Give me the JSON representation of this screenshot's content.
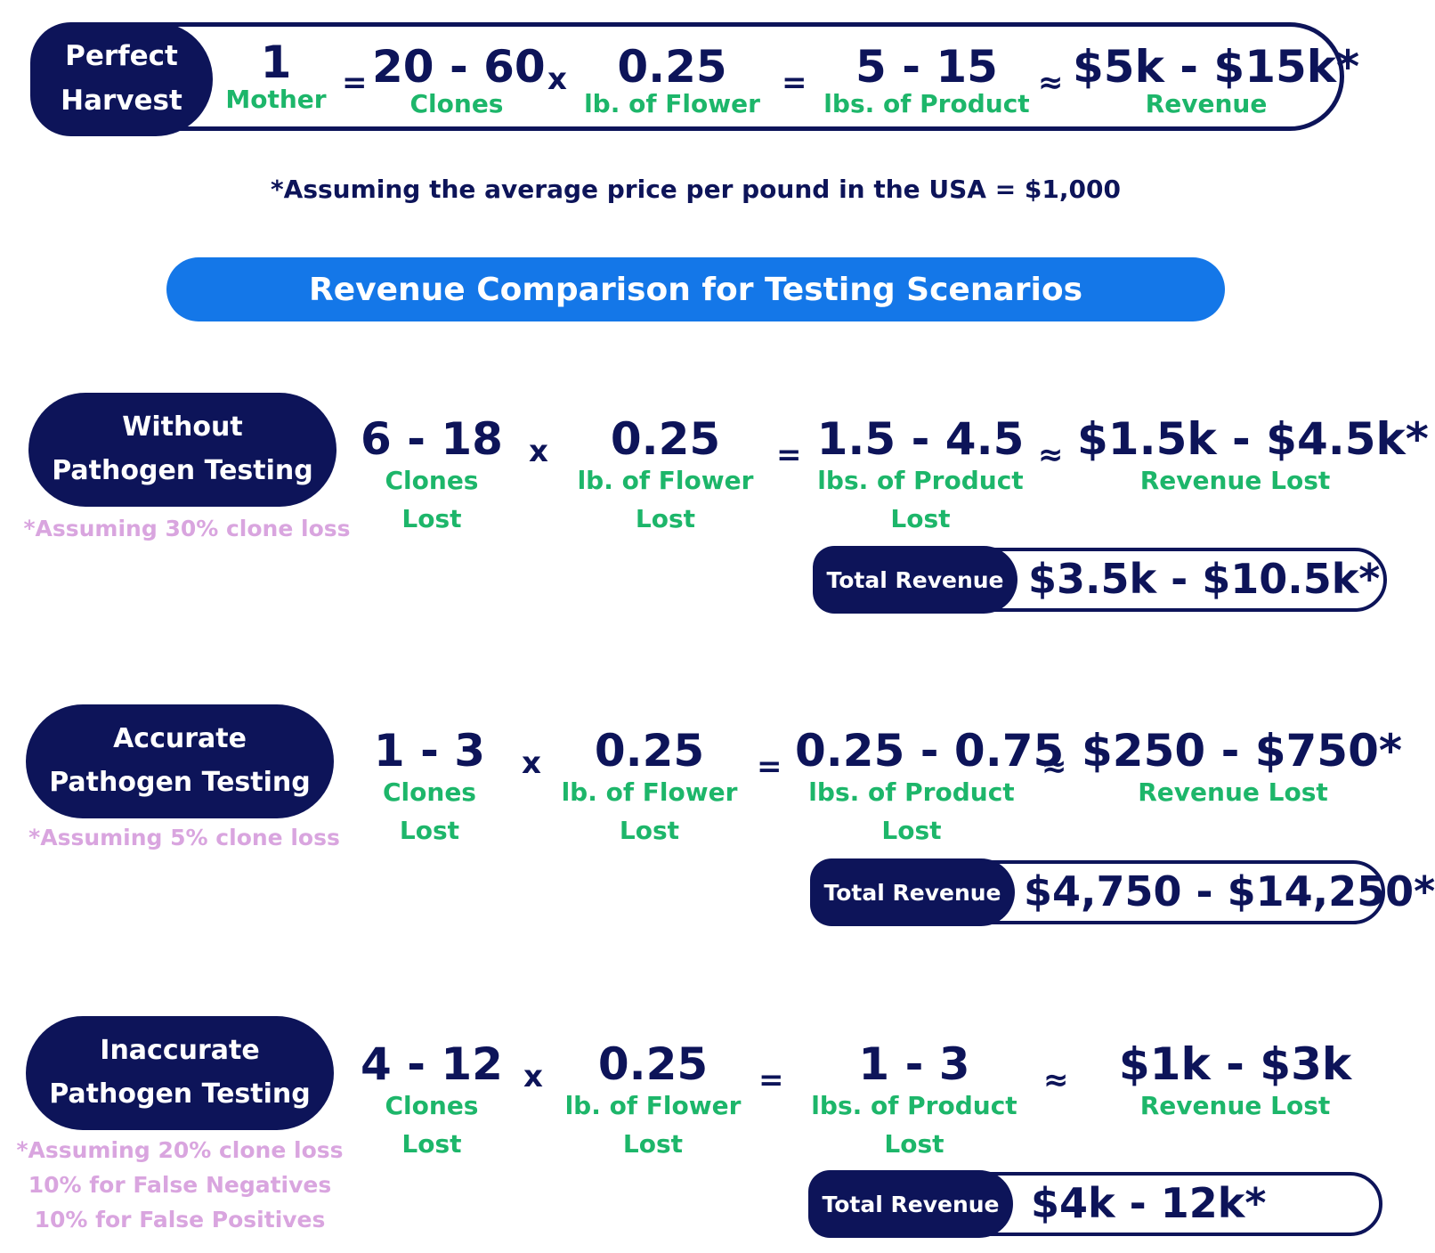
{
  "perfect_harvest": {
    "title_line1": "Perfect",
    "title_line2": "Harvest",
    "terms": [
      {
        "value": "1",
        "label": "Mother"
      },
      {
        "value": "20 - 60",
        "label": "Clones"
      },
      {
        "value": "0.25",
        "label": "lb. of Flower"
      },
      {
        "value": "5 - 15",
        "label": "lbs. of Product"
      },
      {
        "value": "$5k - $15k*",
        "label": "Revenue"
      }
    ],
    "operators": [
      "=",
      "x",
      "=",
      "≈"
    ]
  },
  "note": "*Assuming the average price per pound in the USA = $1,000",
  "banner": "Revenue Comparison for Testing Scenarios",
  "total_label": "Total Revenue",
  "scenarios": [
    {
      "title_line1": "Without",
      "title_line2": "Pathogen Testing",
      "assumptions": [
        "*Assuming 30% clone loss"
      ],
      "clones": "6 - 18",
      "clones_label": "Clones",
      "clones_label2": "Lost",
      "flower": "0.25",
      "flower_label": "lb. of Flower",
      "flower_label2": "Lost",
      "product": "1.5 - 4.5",
      "product_label": "lbs. of Product",
      "product_label2": "Lost",
      "revenue": "$1.5k - $4.5k*",
      "revenue_label": "Revenue Lost",
      "total": "$3.5k - $10.5k*"
    },
    {
      "title_line1": "Accurate",
      "title_line2": "Pathogen Testing",
      "assumptions": [
        "*Assuming 5% clone loss"
      ],
      "clones": "1 - 3",
      "clones_label": "Clones",
      "clones_label2": "Lost",
      "flower": "0.25",
      "flower_label": "lb. of Flower",
      "flower_label2": "Lost",
      "product": "0.25 - 0.75",
      "product_label": "lbs. of Product",
      "product_label2": "Lost",
      "revenue": "$250 - $750*",
      "revenue_label": "Revenue Lost",
      "total": "$4,750 - $14,250*"
    },
    {
      "title_line1": "Inaccurate",
      "title_line2": "Pathogen Testing",
      "assumptions": [
        "*Assuming 20% clone loss",
        "10% for False Negatives",
        "10% for False Positives"
      ],
      "clones": "4 - 12",
      "clones_label": "Clones",
      "clones_label2": "Lost",
      "flower": "0.25",
      "flower_label": "lb. of Flower",
      "flower_label2": "Lost",
      "product": "1 - 3",
      "product_label": "lbs. of Product",
      "product_label2": "Lost",
      "revenue": "$1k - $3k",
      "revenue_label": "Revenue Lost",
      "total": "$4k - 12k*"
    }
  ],
  "colors": {
    "navy": "#0d1459",
    "green": "#1db66a",
    "blue": "#1477e8",
    "pink": "#d9a5df"
  }
}
